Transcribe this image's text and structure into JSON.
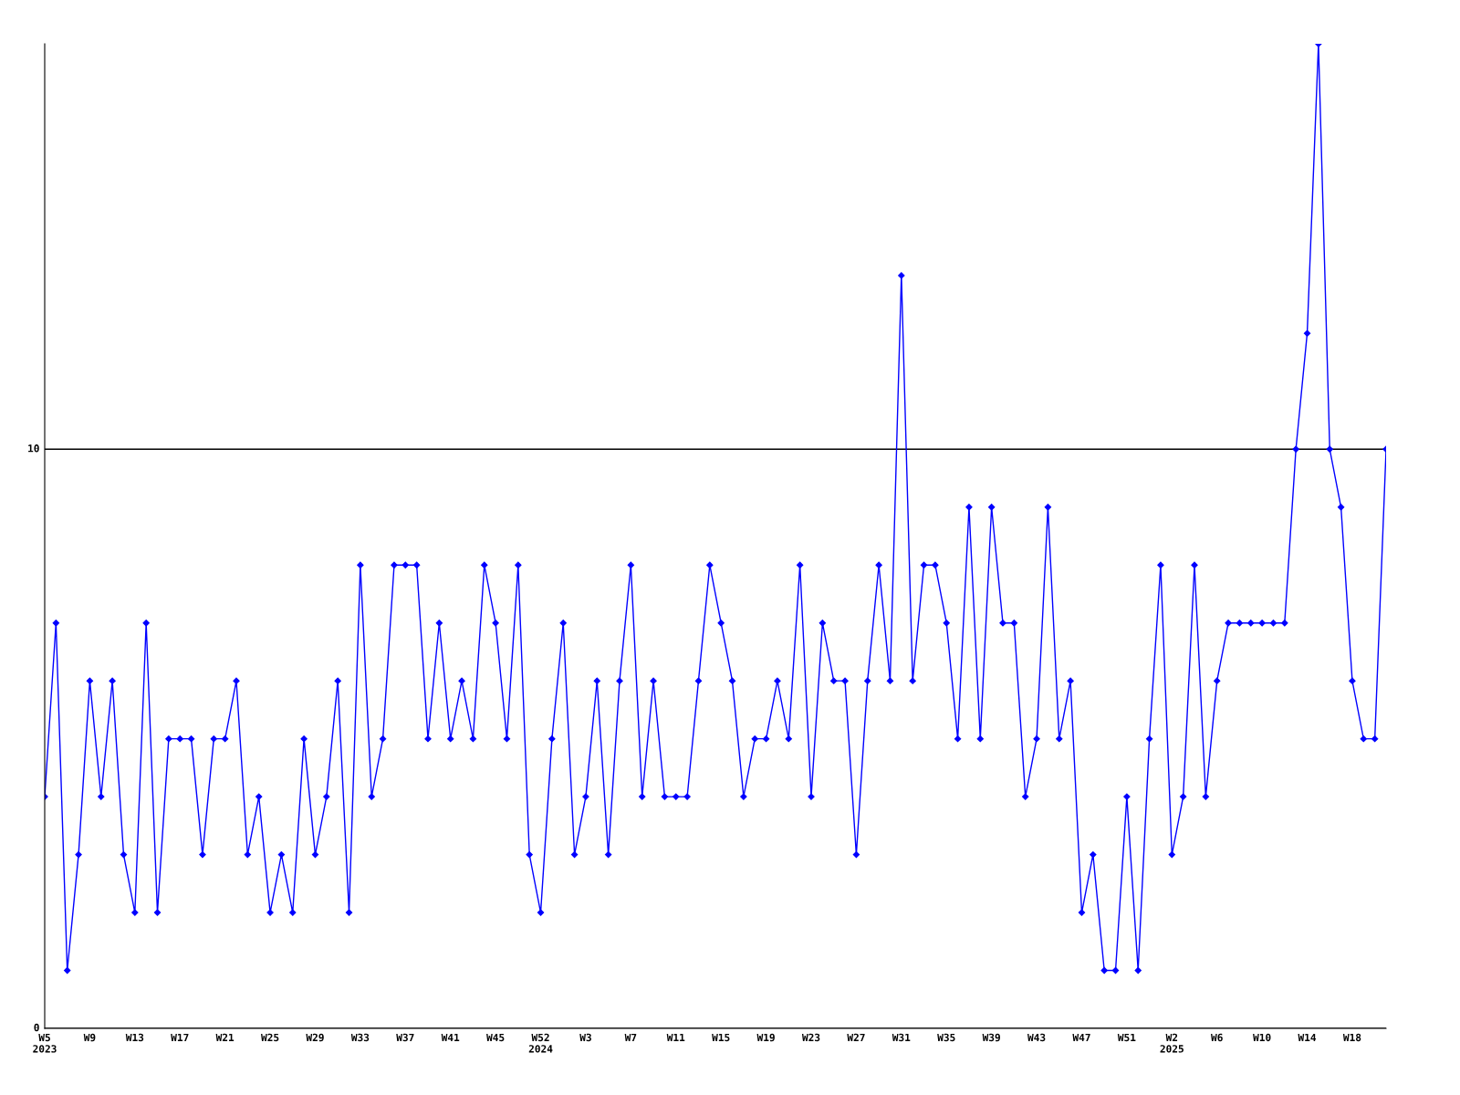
{
  "chart_data": {
    "type": "line",
    "categories": [
      "W5\n2023",
      null,
      null,
      null,
      "W9",
      null,
      null,
      null,
      "W13",
      null,
      null,
      null,
      "W17",
      null,
      null,
      null,
      "W21",
      null,
      null,
      null,
      "W25",
      null,
      null,
      null,
      "W29",
      null,
      null,
      null,
      "W33",
      null,
      null,
      null,
      "W37",
      null,
      null,
      null,
      "W41",
      null,
      null,
      null,
      "W45",
      null,
      null,
      null,
      "W52\n2024",
      null,
      null,
      null,
      "W3",
      null,
      null,
      null,
      "W7",
      null,
      null,
      null,
      "W11",
      null,
      null,
      null,
      "W15",
      null,
      null,
      null,
      "W19",
      null,
      null,
      null,
      "W23",
      null,
      null,
      null,
      "W27",
      null,
      null,
      null,
      "W31",
      null,
      null,
      null,
      "W35",
      null,
      null,
      null,
      "W39",
      null,
      null,
      null,
      "W43",
      null,
      null,
      null,
      "W47",
      null,
      null,
      null,
      "W51",
      null,
      null,
      null,
      "W2\n2025",
      null,
      null,
      null,
      "W6",
      null,
      null,
      null,
      "W10",
      null,
      null,
      null,
      "W14",
      null,
      null,
      null,
      "W18",
      null,
      null,
      null
    ],
    "series": [
      {
        "color": "#0000ff",
        "values": [
          4,
          7,
          1,
          3,
          6,
          4,
          6,
          3,
          2,
          7,
          2,
          5,
          5,
          5,
          3,
          5,
          5,
          6,
          3,
          4,
          2,
          3,
          2,
          5,
          3,
          4,
          6,
          2,
          8,
          4,
          5,
          8,
          8,
          8,
          5,
          7,
          5,
          6,
          5,
          8,
          7,
          5,
          8,
          3,
          2,
          5,
          7,
          3,
          4,
          6,
          3,
          6,
          8,
          4,
          6,
          4,
          4,
          4,
          6,
          8,
          7,
          6,
          4,
          5,
          5,
          6,
          5,
          8,
          4,
          7,
          6,
          6,
          3,
          6,
          8,
          6,
          13,
          6,
          8,
          8,
          7,
          5,
          9,
          5,
          9,
          7,
          7,
          4,
          5,
          9,
          5,
          6,
          2,
          3,
          1,
          1,
          4,
          1,
          5,
          8,
          3,
          4,
          8,
          4,
          6,
          7,
          7,
          7,
          7,
          7,
          7,
          10,
          12,
          17,
          10,
          9,
          6,
          5,
          5,
          10
        ]
      }
    ],
    "ylim": [
      0,
      17
    ],
    "yticks": [
      0,
      10
    ],
    "grid": "y",
    "marker": "diamond",
    "line_style": "solid",
    "legend": false
  }
}
